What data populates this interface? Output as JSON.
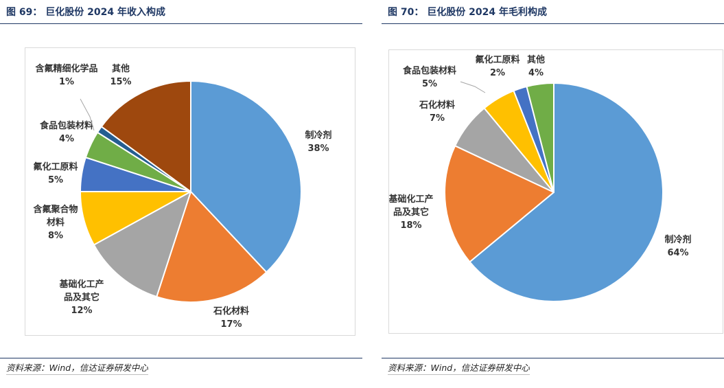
{
  "left": {
    "title": "图 69：  巨化股份 2024 年收入构成",
    "source": "资料来源：Wind，信达证券研发中心",
    "chart_data": {
      "type": "pie",
      "start_angle_deg": 0,
      "direction": "clockwise",
      "slices": [
        {
          "name": "制冷剂",
          "label_lines": [
            "制冷剂"
          ],
          "value": 38,
          "value_label": "38%",
          "color": "#5b9bd5"
        },
        {
          "name": "石化材料",
          "label_lines": [
            "石化材料"
          ],
          "value": 17,
          "value_label": "17%",
          "color": "#ed7d31"
        },
        {
          "name": "基础化工产品及其它",
          "label_lines": [
            "基础化工产",
            "品及其它"
          ],
          "value": 12,
          "value_label": "12%",
          "color": "#a5a5a5"
        },
        {
          "name": "含氟聚合物材料",
          "label_lines": [
            "含氟聚合物",
            "材料"
          ],
          "value": 8,
          "value_label": "8%",
          "color": "#ffc000"
        },
        {
          "name": "氟化工原料",
          "label_lines": [
            "氟化工原料"
          ],
          "value": 5,
          "value_label": "5%",
          "color": "#4472c4"
        },
        {
          "name": "食品包装材料",
          "label_lines": [
            "食品包装材料"
          ],
          "value": 4,
          "value_label": "4%",
          "color": "#70ad47"
        },
        {
          "name": "含氟精细化学品",
          "label_lines": [
            "含氟精细化学品"
          ],
          "value": 1,
          "value_label": "1%",
          "color": "#255e91"
        },
        {
          "name": "其他",
          "label_lines": [
            "其他"
          ],
          "value": 15,
          "value_label": "15%",
          "color": "#9e480e"
        }
      ]
    }
  },
  "right": {
    "title": "图 70：  巨化股份 2024 年毛利构成",
    "source": "资料来源：Wind，信达证券研发中心",
    "chart_data": {
      "type": "pie",
      "start_angle_deg": 0,
      "direction": "clockwise",
      "slices": [
        {
          "name": "制冷剂",
          "label_lines": [
            "制冷剂"
          ],
          "value": 64,
          "value_label": "64%",
          "color": "#5b9bd5"
        },
        {
          "name": "基础化工产品及其它",
          "label_lines": [
            "基础化工产",
            "品及其它"
          ],
          "value": 18,
          "value_label": "18%",
          "color": "#ed7d31"
        },
        {
          "name": "石化材料",
          "label_lines": [
            "石化材料"
          ],
          "value": 7,
          "value_label": "7%",
          "color": "#a5a5a5"
        },
        {
          "name": "食品包装材料",
          "label_lines": [
            "食品包装材料"
          ],
          "value": 5,
          "value_label": "5%",
          "color": "#ffc000"
        },
        {
          "name": "氟化工原料",
          "label_lines": [
            "氟化工原料"
          ],
          "value": 2,
          "value_label": "2%",
          "color": "#4472c4"
        },
        {
          "name": "其他",
          "label_lines": [
            "其他"
          ],
          "value": 4,
          "value_label": "4%",
          "color": "#70ad47"
        }
      ]
    }
  }
}
